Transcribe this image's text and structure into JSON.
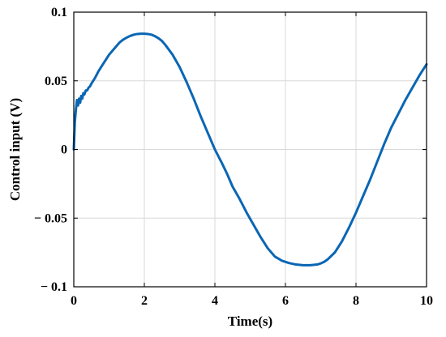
{
  "chart_data": {
    "type": "line",
    "title": "",
    "xlabel": "Time(s)",
    "ylabel": "Control input (V)",
    "xlim": [
      0,
      10
    ],
    "ylim": [
      -0.1,
      0.1
    ],
    "grid": true,
    "x_ticks": [
      {
        "value": 0,
        "label": "0"
      },
      {
        "value": 2,
        "label": "2"
      },
      {
        "value": 4,
        "label": "4"
      },
      {
        "value": 6,
        "label": "6"
      },
      {
        "value": 8,
        "label": "8"
      },
      {
        "value": 10,
        "label": "10"
      }
    ],
    "y_ticks": [
      {
        "value": 0.1,
        "label": "0.1"
      },
      {
        "value": 0.05,
        "label": "0.05"
      },
      {
        "value": 0,
        "label": "0"
      },
      {
        "value": -0.05,
        "label": "− 0.05"
      },
      {
        "value": -0.1,
        "label": "− 0.1"
      }
    ],
    "series": [
      {
        "color": "#0a66b4",
        "x": [
          0,
          0.03,
          0.06,
          0.09,
          0.12,
          0.15,
          0.18,
          0.21,
          0.24,
          0.27,
          0.3,
          0.34,
          0.38,
          0.42,
          0.46,
          0.5,
          0.6,
          0.7,
          0.8,
          0.9,
          1.0,
          1.1,
          1.2,
          1.3,
          1.4,
          1.5,
          1.6,
          1.7,
          1.8,
          1.9,
          2.0,
          2.1,
          2.2,
          2.3,
          2.4,
          2.5,
          2.6,
          2.8,
          3.0,
          3.2,
          3.4,
          3.6,
          3.8,
          4.0,
          4.2,
          4.35,
          4.5,
          4.7,
          4.9,
          5.1,
          5.3,
          5.5,
          5.7,
          5.9,
          6.1,
          6.3,
          6.5,
          6.7,
          6.9,
          7.0,
          7.1,
          7.2,
          7.4,
          7.6,
          7.8,
          8.0,
          8.2,
          8.4,
          8.6,
          8.8,
          9.0,
          9.2,
          9.4,
          9.6,
          9.8,
          10.0
        ],
        "y": [
          0,
          0.02,
          0.029,
          0.036,
          0.032,
          0.037,
          0.034,
          0.039,
          0.037,
          0.041,
          0.04,
          0.043,
          0.043,
          0.045,
          0.046,
          0.048,
          0.052,
          0.057,
          0.061,
          0.065,
          0.069,
          0.072,
          0.075,
          0.078,
          0.08,
          0.0815,
          0.0827,
          0.0836,
          0.0841,
          0.0843,
          0.0843,
          0.0841,
          0.0836,
          0.0825,
          0.081,
          0.079,
          0.076,
          0.069,
          0.06,
          0.049,
          0.037,
          0.024,
          0.012,
          0.0,
          -0.01,
          -0.018,
          -0.027,
          -0.036,
          -0.046,
          -0.055,
          -0.064,
          -0.072,
          -0.078,
          -0.081,
          -0.0827,
          -0.0838,
          -0.0843,
          -0.0843,
          -0.0838,
          -0.083,
          -0.0818,
          -0.08,
          -0.075,
          -0.067,
          -0.057,
          -0.046,
          -0.034,
          -0.022,
          -0.009,
          0.004,
          0.016,
          0.026,
          0.036,
          0.045,
          0.054,
          0.062
        ]
      }
    ]
  }
}
